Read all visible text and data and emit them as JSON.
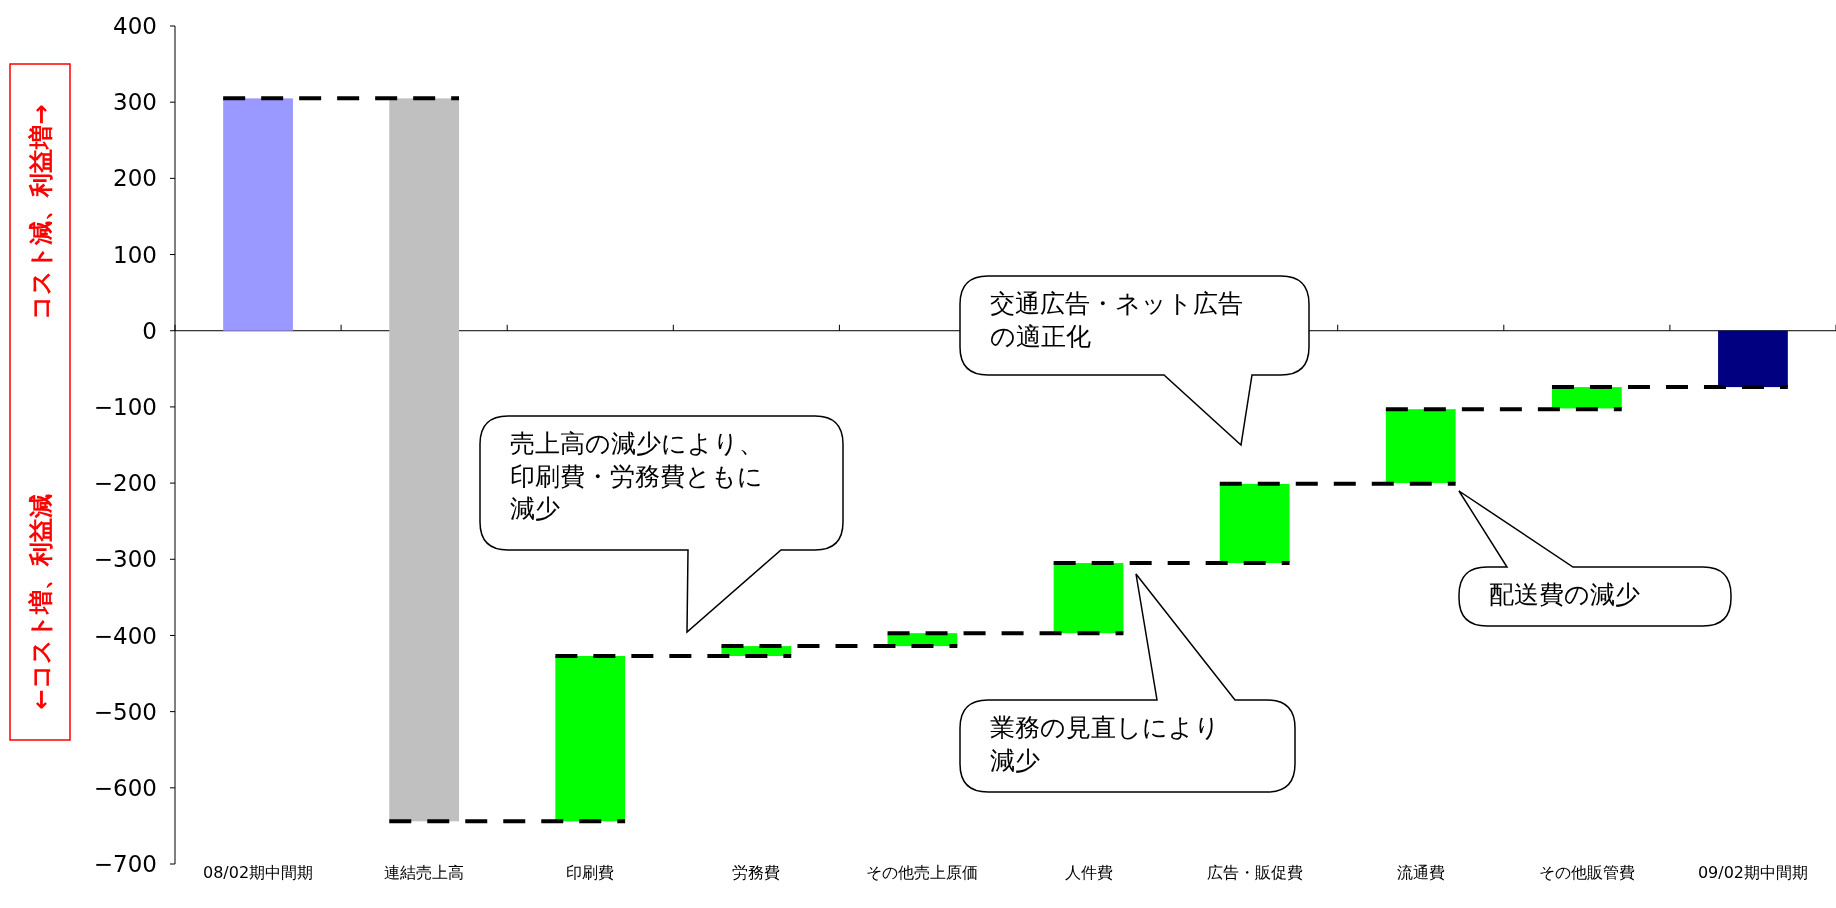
{
  "chart_data": {
    "type": "bar",
    "categories": [
      "08/02期中間期",
      "連結売上高",
      "印刷費",
      "労務費",
      "その他売上原価",
      "人件費",
      "広告・販促費",
      "流通費",
      "その他販管費",
      "09/02期中間期"
    ],
    "base": [
      0,
      305,
      -644,
      -427,
      -414,
      -397,
      -305,
      -200,
      -102,
      0
    ],
    "values": [
      305,
      -949,
      217,
      13,
      17,
      92,
      104,
      97,
      28,
      -74
    ],
    "colors": [
      "#9999ff",
      "#c0c0c0",
      "#00ff00",
      "#00ff00",
      "#00ff00",
      "#00ff00",
      "#00ff00",
      "#00ff00",
      "#00ff00",
      "#000080"
    ],
    "ylim": [
      -700,
      400
    ],
    "yticks": [
      -700,
      -600,
      -500,
      -400,
      -300,
      -200,
      -100,
      0,
      100,
      200,
      300,
      400
    ],
    "ylabel": "←コスト増、利益減",
    "annotations": [
      "コスト減、利益増→",
      "売上高の減少により、印刷費・労務費ともに減少",
      "交通広告・ネット広告の適正化",
      "配送費の減少",
      "業務の見直しにより減少"
    ]
  }
}
